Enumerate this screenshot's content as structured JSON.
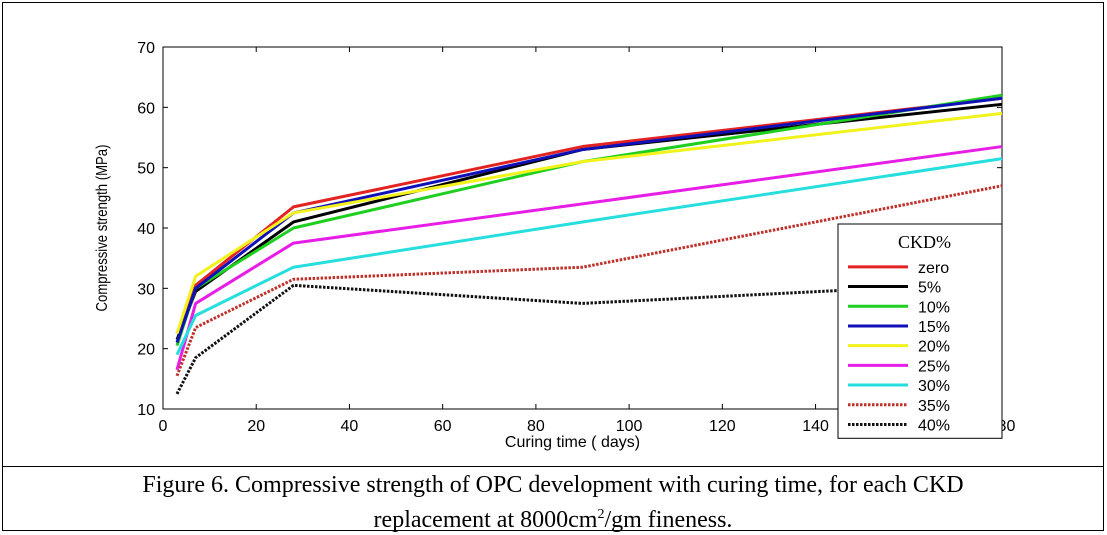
{
  "chart_data": {
    "type": "line",
    "xlabel": "Curing time ( days)",
    "ylabel": "Compressive strength (MPa)",
    "xlim": [
      0,
      180
    ],
    "ylim": [
      10,
      70
    ],
    "xticks": [
      "0",
      "20",
      "40",
      "60",
      "80",
      "100",
      "120",
      "140",
      "180"
    ],
    "yticks": [
      "10",
      "20",
      "30",
      "40",
      "50",
      "60",
      "70"
    ],
    "x": [
      3,
      7,
      28,
      90,
      180
    ],
    "grid": false,
    "legend": {
      "title": "CKD%",
      "placement": "right, lower half"
    },
    "series": [
      {
        "name": "zero",
        "color": "#e32222",
        "dash": "solid",
        "values": [
          22.5,
          30.5,
          43.5,
          53.5,
          61.5
        ]
      },
      {
        "name": "5%",
        "color": "#000000",
        "dash": "solid",
        "values": [
          21.5,
          29.5,
          41.0,
          53.0,
          60.5
        ]
      },
      {
        "name": "10%",
        "color": "#1fcf1f",
        "dash": "solid",
        "values": [
          20.5,
          30.0,
          40.0,
          51.0,
          62.0
        ]
      },
      {
        "name": "15%",
        "color": "#1010b8",
        "dash": "solid",
        "values": [
          21.0,
          30.0,
          42.5,
          53.0,
          61.5
        ]
      },
      {
        "name": "20%",
        "color": "#f2f21c",
        "dash": "solid",
        "values": [
          22.5,
          32.0,
          42.5,
          51.0,
          59.0
        ]
      },
      {
        "name": "25%",
        "color": "#e61ee6",
        "dash": "solid",
        "values": [
          16.5,
          27.5,
          37.5,
          44.0,
          53.5
        ]
      },
      {
        "name": "30%",
        "color": "#26dede",
        "dash": "solid",
        "values": [
          19.0,
          25.5,
          33.5,
          41.0,
          51.5
        ]
      },
      {
        "name": "35%",
        "color": "#c0302a",
        "dash": "dotted",
        "values": [
          15.5,
          23.5,
          31.5,
          33.5,
          47.0
        ]
      },
      {
        "name": "40%",
        "color": "#111111",
        "dash": "dotted",
        "values": [
          12.5,
          18.5,
          30.5,
          27.5,
          31.0
        ]
      }
    ]
  },
  "caption": {
    "line1": "Figure 6.  Compressive strength of OPC development with curing time, for each  CKD",
    "line2_pre": "replacement at 8000cm",
    "line2_sup": "2",
    "line2_post": "/gm fineness."
  }
}
